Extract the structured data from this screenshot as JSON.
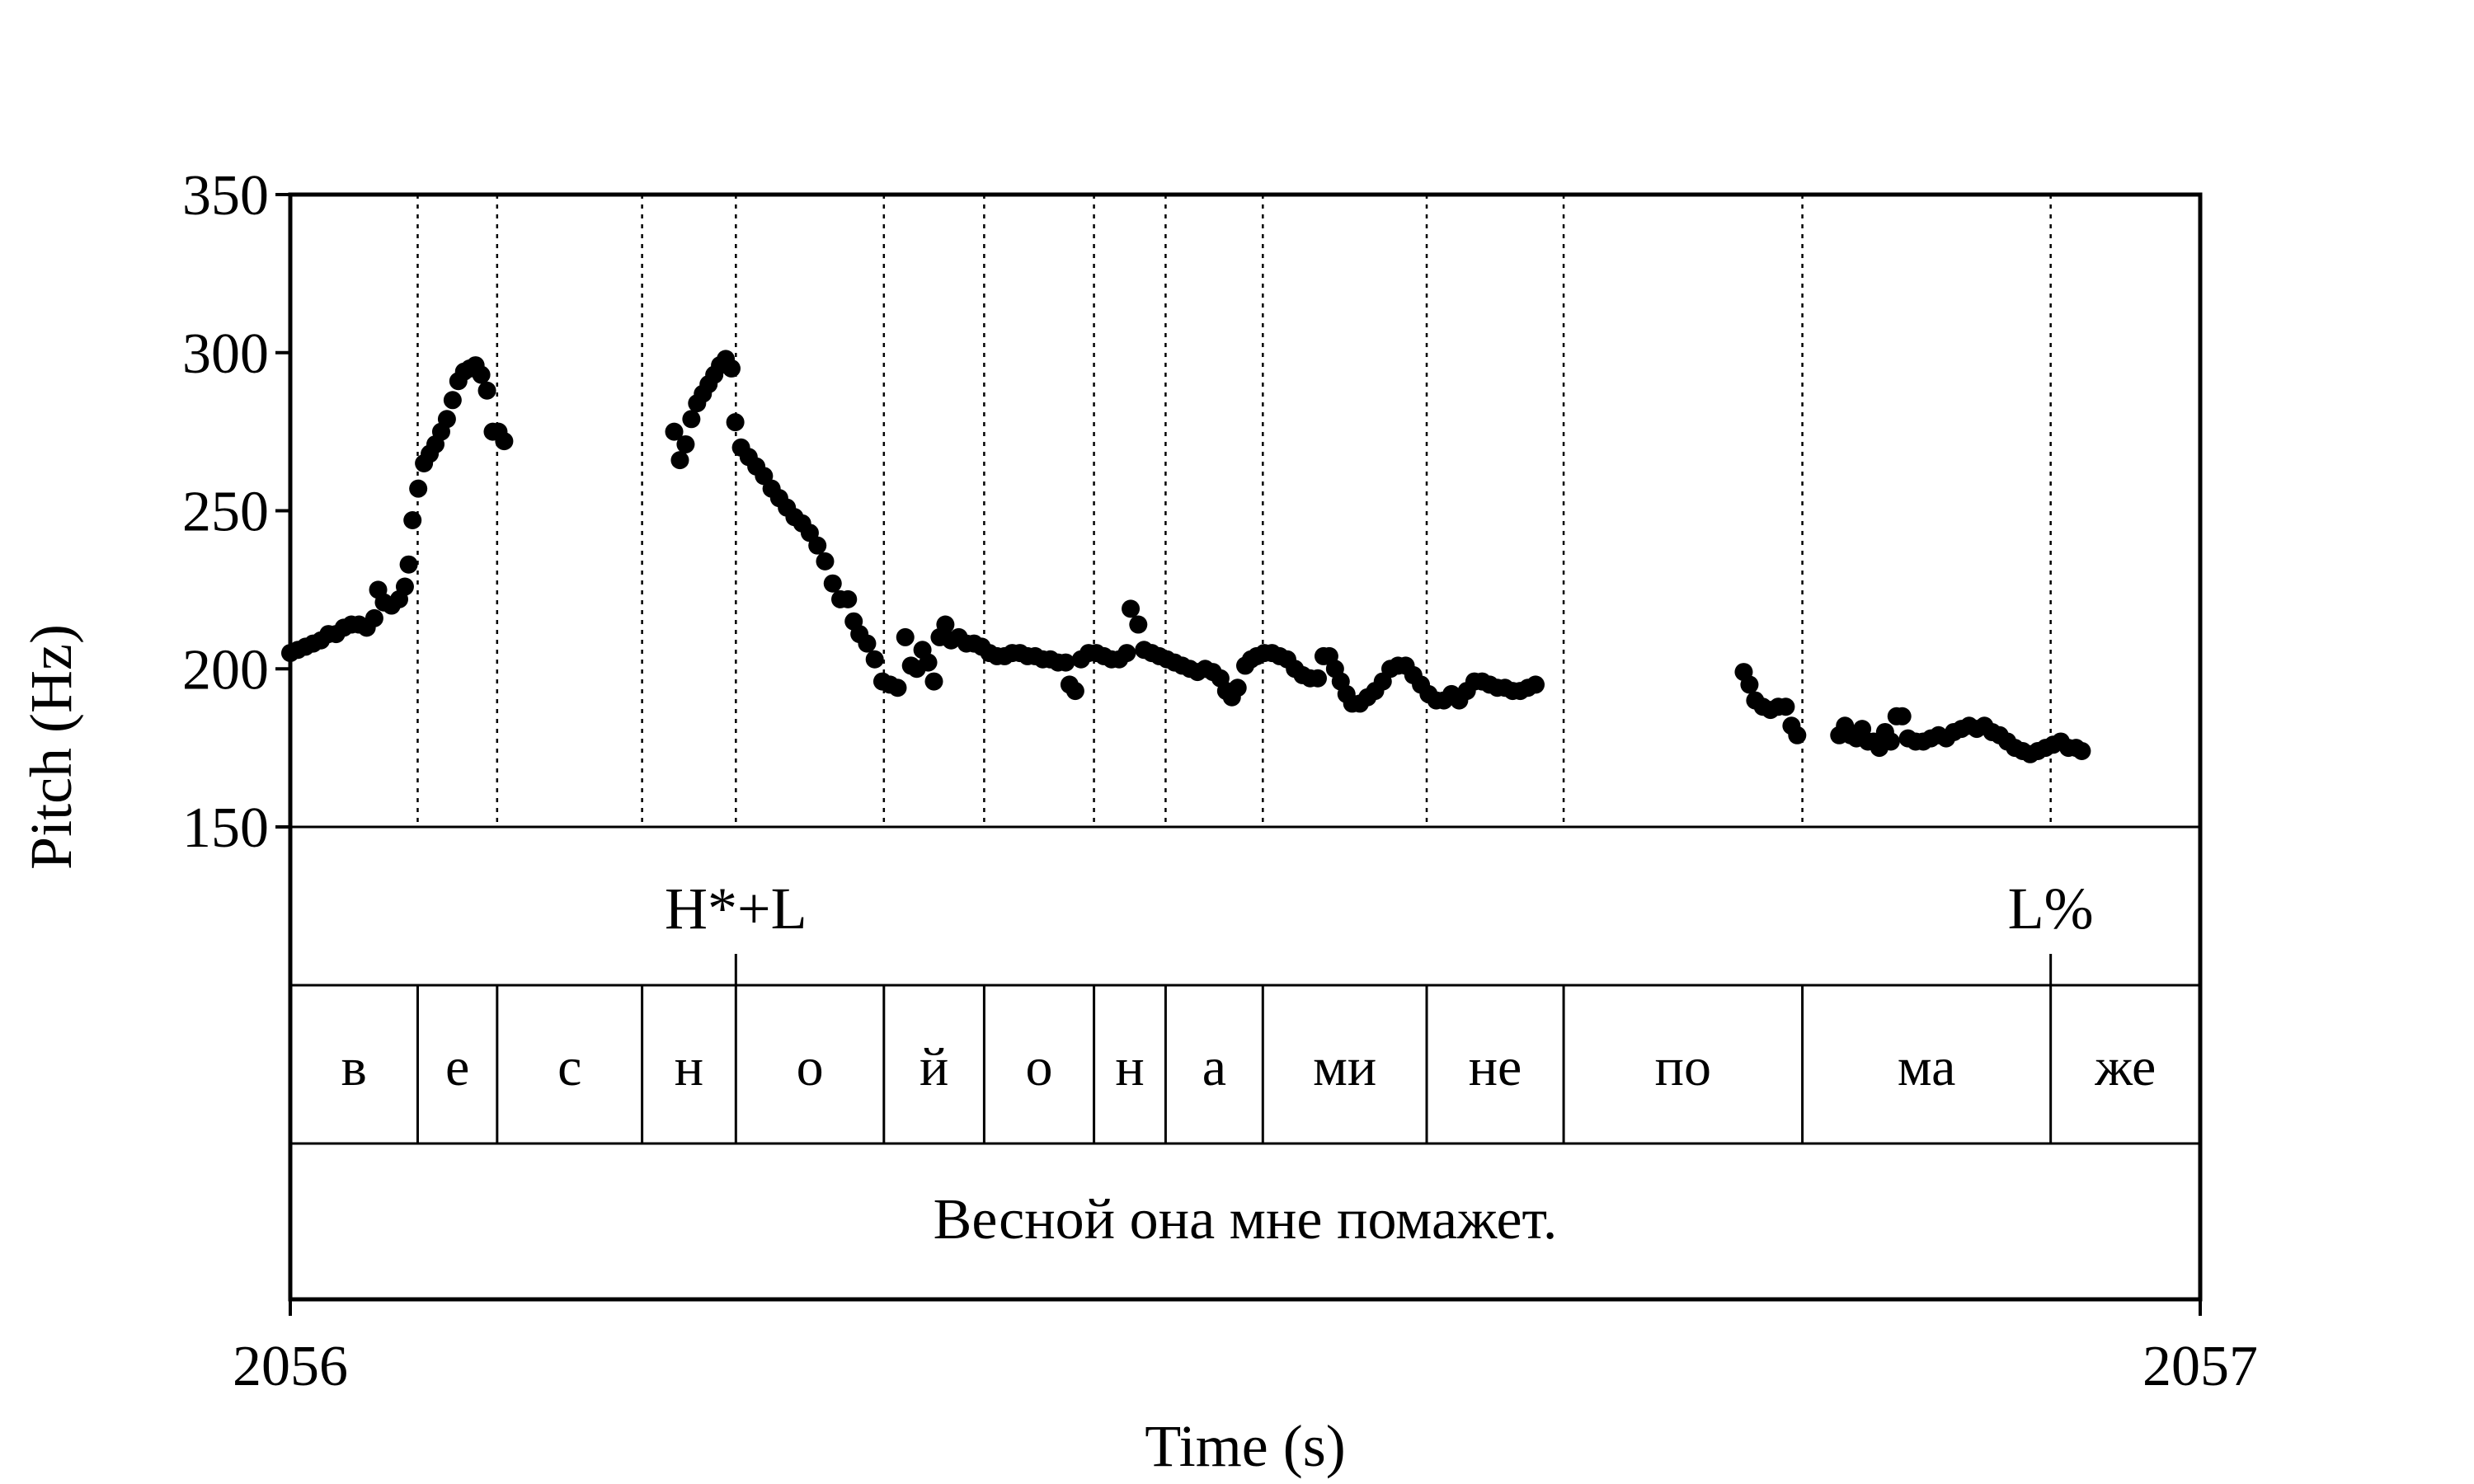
{
  "chart_data": {
    "type": "scatter",
    "xlabel": "Time (s)",
    "ylabel": "Pitch (Hz)",
    "xlim": [
      2056,
      2057
    ],
    "ylim": [
      150,
      350
    ],
    "x_tick_labels": [
      "2056",
      "2057"
    ],
    "y_tick_labels": [
      "350",
      "300",
      "250",
      "200",
      "150"
    ],
    "marker_color": "#000000",
    "segment_boundaries": [
      2056.0667,
      2056.1083,
      2056.1842,
      2056.2333,
      2056.3108,
      2056.3633,
      2056.4208,
      2056.4583,
      2056.5092,
      2056.595,
      2056.6667,
      2056.7917,
      2056.9217
    ],
    "tones": [
      {
        "label": "H*+L",
        "time": 2056.2333
      },
      {
        "label": "L%",
        "time": 2056.9217
      }
    ],
    "syllables": [
      "в",
      "е",
      "с",
      "н",
      "о",
      "й",
      "о",
      "н",
      "а",
      "ми",
      "не",
      "по",
      "ма",
      "же"
    ],
    "sentence": "Весной она мне помажет.",
    "pitch_points": [
      [
        2056.0,
        205
      ],
      [
        2056.004,
        206
      ],
      [
        2056.008,
        207
      ],
      [
        2056.012,
        208
      ],
      [
        2056.016,
        209
      ],
      [
        2056.02,
        211
      ],
      [
        2056.024,
        211
      ],
      [
        2056.028,
        213
      ],
      [
        2056.032,
        214
      ],
      [
        2056.036,
        214
      ],
      [
        2056.04,
        213
      ],
      [
        2056.044,
        216
      ],
      [
        2056.046,
        225
      ],
      [
        2056.049,
        221
      ],
      [
        2056.053,
        220
      ],
      [
        2056.057,
        222
      ],
      [
        2056.06,
        226
      ],
      [
        2056.062,
        233
      ],
      [
        2056.064,
        247
      ],
      [
        2056.067,
        257
      ],
      [
        2056.07,
        265
      ],
      [
        2056.073,
        268
      ],
      [
        2056.076,
        271
      ],
      [
        2056.079,
        275
      ],
      [
        2056.082,
        279
      ],
      [
        2056.085,
        285
      ],
      [
        2056.088,
        291
      ],
      [
        2056.091,
        294
      ],
      [
        2056.094,
        295
      ],
      [
        2056.097,
        296
      ],
      [
        2056.1,
        293
      ],
      [
        2056.103,
        288
      ],
      [
        2056.106,
        275
      ],
      [
        2056.109,
        275
      ],
      [
        2056.112,
        272
      ],
      [
        2056.201,
        275
      ],
      [
        2056.204,
        266
      ],
      [
        2056.207,
        271
      ],
      [
        2056.21,
        279
      ],
      [
        2056.213,
        284
      ],
      [
        2056.216,
        287
      ],
      [
        2056.219,
        290
      ],
      [
        2056.222,
        293
      ],
      [
        2056.225,
        296
      ],
      [
        2056.228,
        298
      ],
      [
        2056.231,
        295
      ],
      [
        2056.233,
        278
      ],
      [
        2056.236,
        270
      ],
      [
        2056.24,
        267
      ],
      [
        2056.244,
        264
      ],
      [
        2056.248,
        261
      ],
      [
        2056.252,
        257
      ],
      [
        2056.256,
        254
      ],
      [
        2056.26,
        251
      ],
      [
        2056.264,
        248
      ],
      [
        2056.268,
        246
      ],
      [
        2056.272,
        243
      ],
      [
        2056.276,
        239
      ],
      [
        2056.28,
        234
      ],
      [
        2056.284,
        227
      ],
      [
        2056.288,
        222
      ],
      [
        2056.292,
        222
      ],
      [
        2056.295,
        215
      ],
      [
        2056.298,
        211
      ],
      [
        2056.302,
        208
      ],
      [
        2056.306,
        203
      ],
      [
        2056.31,
        196
      ],
      [
        2056.314,
        195
      ],
      [
        2056.318,
        194
      ],
      [
        2056.322,
        210
      ],
      [
        2056.325,
        201
      ],
      [
        2056.328,
        200
      ],
      [
        2056.331,
        206
      ],
      [
        2056.334,
        202
      ],
      [
        2056.337,
        196
      ],
      [
        2056.34,
        210
      ],
      [
        2056.343,
        214
      ],
      [
        2056.346,
        209
      ],
      [
        2056.35,
        210
      ],
      [
        2056.354,
        208
      ],
      [
        2056.358,
        208
      ],
      [
        2056.362,
        207
      ],
      [
        2056.366,
        205
      ],
      [
        2056.37,
        204
      ],
      [
        2056.374,
        204
      ],
      [
        2056.378,
        205
      ],
      [
        2056.382,
        205
      ],
      [
        2056.386,
        204
      ],
      [
        2056.39,
        204
      ],
      [
        2056.394,
        203
      ],
      [
        2056.398,
        203
      ],
      [
        2056.402,
        202
      ],
      [
        2056.406,
        202
      ],
      [
        2056.408,
        195
      ],
      [
        2056.411,
        193
      ],
      [
        2056.414,
        203
      ],
      [
        2056.418,
        205
      ],
      [
        2056.422,
        205
      ],
      [
        2056.426,
        204
      ],
      [
        2056.43,
        203
      ],
      [
        2056.434,
        203
      ],
      [
        2056.438,
        205
      ],
      [
        2056.44,
        219
      ],
      [
        2056.444,
        214
      ],
      [
        2056.447,
        206
      ],
      [
        2056.451,
        205
      ],
      [
        2056.455,
        204
      ],
      [
        2056.459,
        203
      ],
      [
        2056.463,
        202
      ],
      [
        2056.467,
        201
      ],
      [
        2056.471,
        200
      ],
      [
        2056.475,
        199
      ],
      [
        2056.479,
        200
      ],
      [
        2056.483,
        199
      ],
      [
        2056.487,
        197
      ],
      [
        2056.49,
        193
      ],
      [
        2056.493,
        191
      ],
      [
        2056.496,
        194
      ],
      [
        2056.5,
        201
      ],
      [
        2056.503,
        203
      ],
      [
        2056.506,
        204
      ],
      [
        2056.51,
        205
      ],
      [
        2056.514,
        205
      ],
      [
        2056.518,
        204
      ],
      [
        2056.522,
        203
      ],
      [
        2056.526,
        200
      ],
      [
        2056.53,
        198
      ],
      [
        2056.534,
        197
      ],
      [
        2056.538,
        197
      ],
      [
        2056.541,
        204
      ],
      [
        2056.544,
        204
      ],
      [
        2056.547,
        200
      ],
      [
        2056.55,
        196
      ],
      [
        2056.553,
        192
      ],
      [
        2056.556,
        189
      ],
      [
        2056.56,
        189
      ],
      [
        2056.564,
        191
      ],
      [
        2056.568,
        193
      ],
      [
        2056.572,
        196
      ],
      [
        2056.576,
        200
      ],
      [
        2056.58,
        201
      ],
      [
        2056.584,
        201
      ],
      [
        2056.588,
        198
      ],
      [
        2056.592,
        195
      ],
      [
        2056.596,
        192
      ],
      [
        2056.6,
        190
      ],
      [
        2056.604,
        190
      ],
      [
        2056.608,
        192
      ],
      [
        2056.612,
        190
      ],
      [
        2056.616,
        193
      ],
      [
        2056.62,
        196
      ],
      [
        2056.624,
        196
      ],
      [
        2056.628,
        195
      ],
      [
        2056.632,
        194
      ],
      [
        2056.636,
        194
      ],
      [
        2056.64,
        193
      ],
      [
        2056.644,
        193
      ],
      [
        2056.648,
        194
      ],
      [
        2056.652,
        195
      ],
      [
        2056.761,
        199
      ],
      [
        2056.764,
        195
      ],
      [
        2056.767,
        190
      ],
      [
        2056.771,
        188
      ],
      [
        2056.775,
        187
      ],
      [
        2056.779,
        188
      ],
      [
        2056.783,
        188
      ],
      [
        2056.786,
        182
      ],
      [
        2056.789,
        179
      ],
      [
        2056.811,
        179
      ],
      [
        2056.814,
        182
      ],
      [
        2056.817,
        179
      ],
      [
        2056.82,
        178
      ],
      [
        2056.823,
        181
      ],
      [
        2056.826,
        177
      ],
      [
        2056.829,
        177
      ],
      [
        2056.832,
        175
      ],
      [
        2056.835,
        180
      ],
      [
        2056.838,
        177
      ],
      [
        2056.841,
        185
      ],
      [
        2056.844,
        185
      ],
      [
        2056.847,
        178
      ],
      [
        2056.851,
        177
      ],
      [
        2056.855,
        177
      ],
      [
        2056.859,
        178
      ],
      [
        2056.863,
        179
      ],
      [
        2056.867,
        178
      ],
      [
        2056.871,
        180
      ],
      [
        2056.875,
        181
      ],
      [
        2056.879,
        182
      ],
      [
        2056.883,
        181
      ],
      [
        2056.887,
        182
      ],
      [
        2056.891,
        180
      ],
      [
        2056.895,
        179
      ],
      [
        2056.899,
        177
      ],
      [
        2056.903,
        175
      ],
      [
        2056.907,
        174
      ],
      [
        2056.911,
        173
      ],
      [
        2056.915,
        174
      ],
      [
        2056.919,
        175
      ],
      [
        2056.923,
        176
      ],
      [
        2056.927,
        177
      ],
      [
        2056.931,
        175
      ],
      [
        2056.935,
        175
      ],
      [
        2056.938,
        174
      ]
    ]
  }
}
